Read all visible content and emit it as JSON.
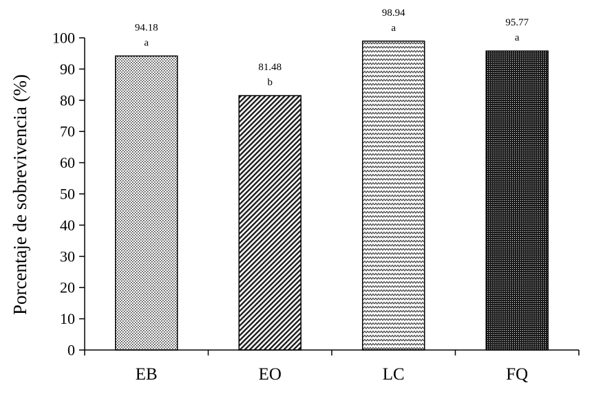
{
  "chart_data": {
    "type": "bar",
    "categories": [
      "EB",
      "EO",
      "LC",
      "FQ"
    ],
    "values": [
      94.18,
      81.48,
      98.94,
      95.77
    ],
    "value_labels": [
      "94.18",
      "81.48",
      "98.94",
      "95.77"
    ],
    "letters": [
      "a",
      "b",
      "a",
      "a"
    ],
    "patterns": [
      "fine-dots",
      "diagonal-hatch",
      "zigzag",
      "dense-dark"
    ],
    "ylabel": "Porcentaje de sobrevivencia (%)",
    "ylim": [
      0,
      100
    ],
    "yticks": [
      "0",
      "10",
      "20",
      "30",
      "40",
      "50",
      "60",
      "70",
      "80",
      "90",
      "100"
    ],
    "grid": false
  }
}
